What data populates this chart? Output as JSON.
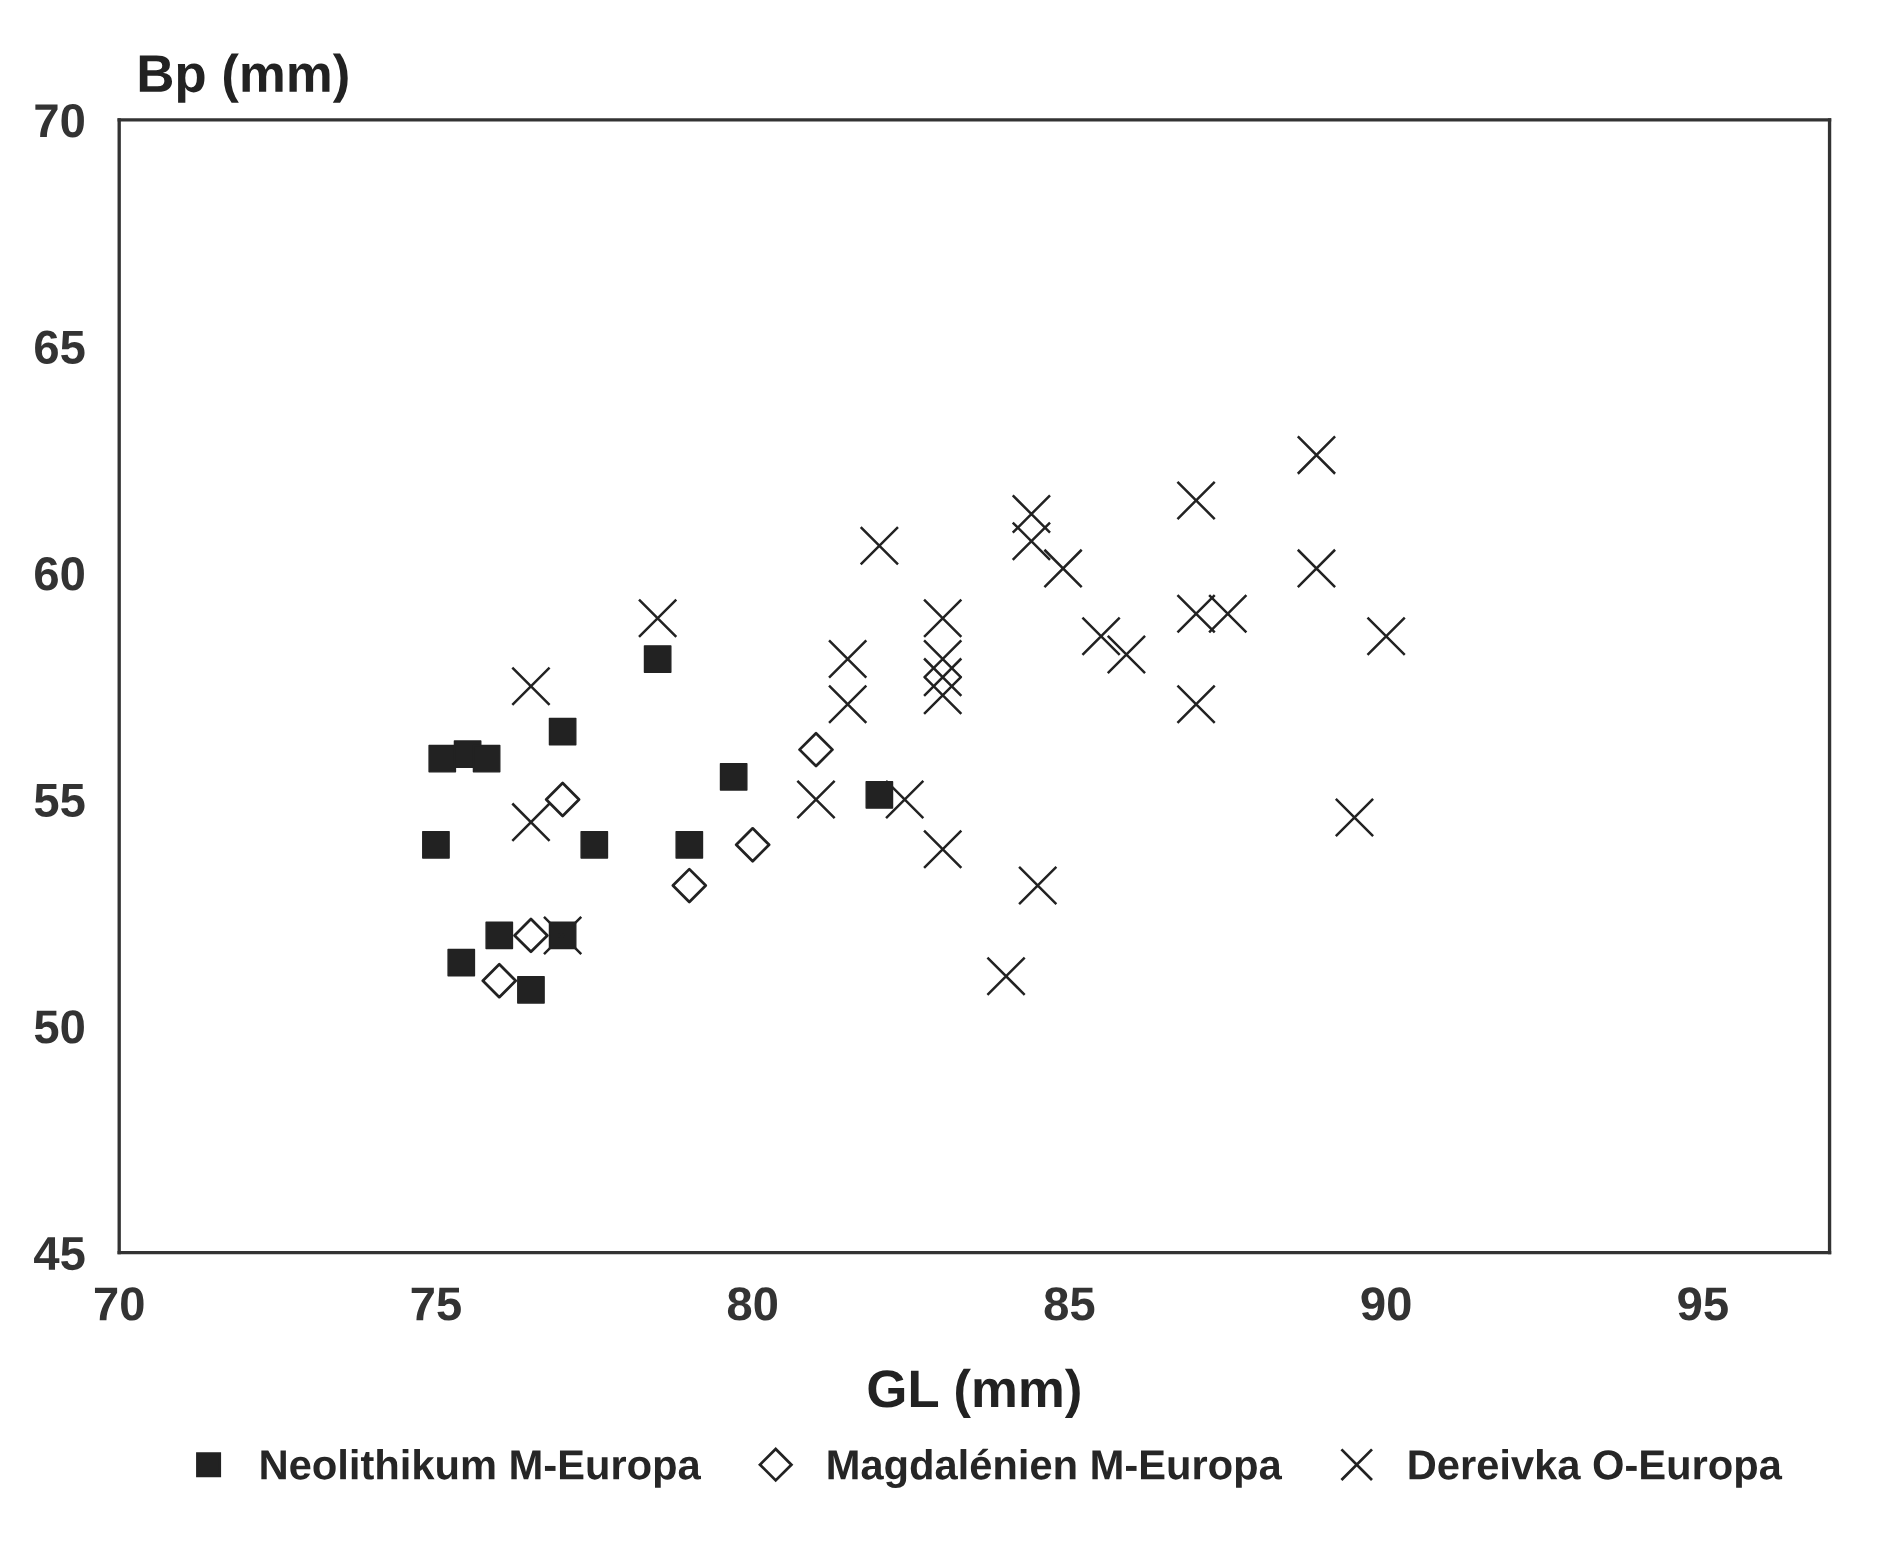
{
  "chart_data": {
    "type": "scatter",
    "xlabel": "GL (mm)",
    "ylabel": "Bp (mm)",
    "xlim": [
      70,
      97
    ],
    "xticks": [
      70,
      75,
      80,
      85,
      90,
      95
    ],
    "ylim": [
      45,
      70
    ],
    "yticks": [
      45,
      50,
      55,
      60,
      65,
      70
    ],
    "grid": false,
    "legend": "bottom",
    "series": [
      {
        "name": "Neolithikum M-Europa",
        "color": "#222222",
        "marker": "square",
        "x": [
          75.1,
          75.4,
          75.5,
          75.8,
          75.0,
          76.0,
          76.5,
          77.0,
          77.0,
          77.5,
          78.5,
          79.0,
          79.7,
          82.0
        ],
        "values": [
          55.9,
          51.4,
          56.0,
          55.9,
          54.0,
          52.0,
          50.8,
          56.5,
          52.0,
          54.0,
          58.1,
          54.0,
          55.5,
          55.1
        ]
      },
      {
        "name": "Magdalénien M-Europa",
        "color": "#222222",
        "marker": "diamond",
        "x": [
          77.0,
          76.5,
          76.0,
          79.0,
          80.0,
          81.0
        ],
        "values": [
          55.0,
          52.0,
          51.0,
          53.1,
          54.0,
          56.1
        ]
      },
      {
        "name": "Dereivka O-Europa",
        "color": "#222222",
        "marker": "cross",
        "x": [
          76.5,
          76.5,
          77.0,
          78.5,
          81.5,
          81.5,
          81.0,
          82.4,
          82.0,
          83.0,
          83.0,
          83.0,
          83.0,
          83.0,
          84.4,
          84.4,
          84.9,
          87.0,
          88.9,
          88.9,
          87.0,
          87.5,
          85.5,
          85.9,
          90.0,
          87.0,
          89.5,
          84.5,
          84.0
        ],
        "values": [
          57.5,
          54.5,
          52.0,
          59.0,
          58.1,
          57.1,
          55.0,
          55.0,
          60.6,
          59.0,
          58.1,
          57.7,
          57.3,
          53.9,
          61.3,
          60.7,
          60.1,
          61.6,
          62.6,
          60.1,
          59.1,
          59.1,
          58.6,
          58.2,
          58.6,
          57.1,
          54.6,
          53.1,
          51.1
        ]
      }
    ]
  }
}
